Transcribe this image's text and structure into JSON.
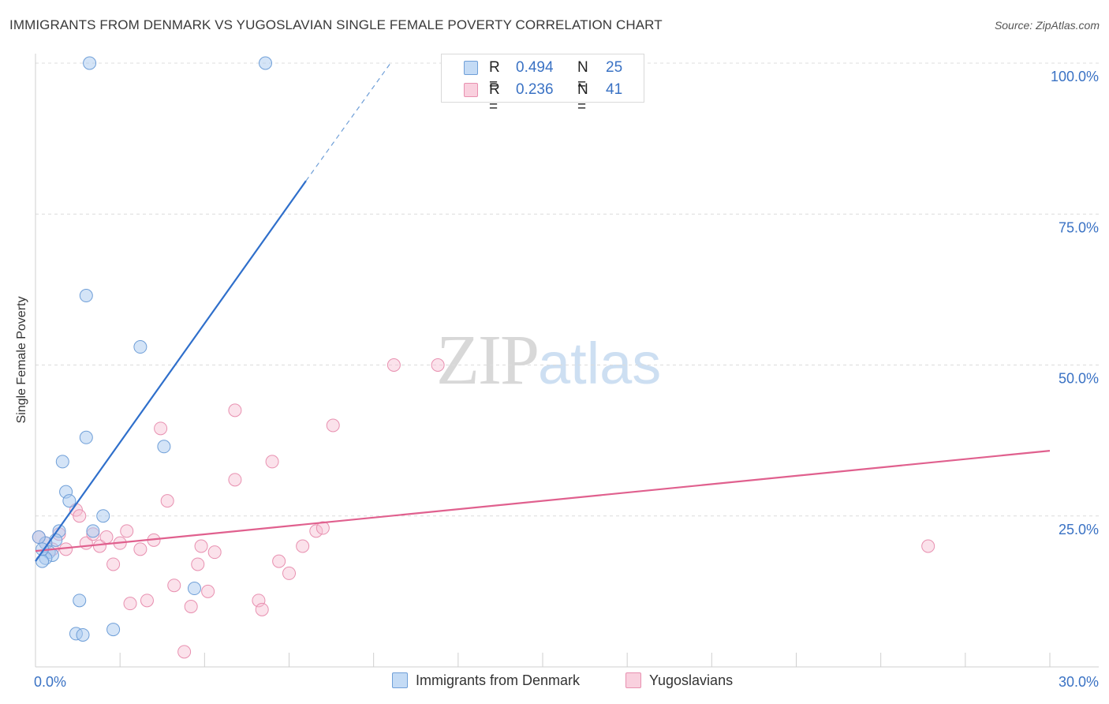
{
  "header": {
    "title": "IMMIGRANTS FROM DENMARK VS YUGOSLAVIAN SINGLE FEMALE POVERTY CORRELATION CHART",
    "source": "Source: ZipAtlas.com"
  },
  "watermark": {
    "zip": "ZIP",
    "atlas": "atlas"
  },
  "legend": {
    "r_label": "R =",
    "n_label": "N =",
    "series": [
      {
        "r": "0.494",
        "n": "25"
      },
      {
        "r": "0.236",
        "n": "41"
      }
    ]
  },
  "bottom_legend": [
    "Immigrants from Denmark",
    "Yugoslavians"
  ],
  "colors": {
    "blue_fill": "#a9c9f0",
    "blue_stroke": "#6f9fd8",
    "blue_line": "#2f6fcb",
    "pink_fill": "#f6bfd3",
    "pink_stroke": "#e890b0",
    "pink_line": "#e0608e",
    "tick_text": "#3a72c4"
  },
  "chart_data": {
    "type": "scatter",
    "title": "IMMIGRANTS FROM DENMARK VS YUGOSLAVIAN SINGLE FEMALE POVERTY CORRELATION CHART",
    "xlabel": "",
    "ylabel": "Single Female Poverty",
    "xlim": [
      0,
      30
    ],
    "ylim": [
      0,
      100
    ],
    "x_tick_labels": [
      "0.0%",
      "30.0%"
    ],
    "y_ticks": [
      25,
      50,
      75,
      100
    ],
    "y_tick_labels": [
      "25.0%",
      "50.0%",
      "75.0%",
      "100.0%"
    ],
    "grid": true,
    "series": [
      {
        "name": "Immigrants from Denmark",
        "r": 0.494,
        "n": 25,
        "points": [
          [
            1.6,
            100
          ],
          [
            6.8,
            100
          ],
          [
            1.5,
            61.5
          ],
          [
            3.1,
            53
          ],
          [
            1.5,
            38
          ],
          [
            3.8,
            36.5
          ],
          [
            0.8,
            34
          ],
          [
            0.9,
            29
          ],
          [
            1.0,
            27.5
          ],
          [
            2.0,
            25
          ],
          [
            0.7,
            22.5
          ],
          [
            1.7,
            22.5
          ],
          [
            0.6,
            21
          ],
          [
            0.3,
            20.5
          ],
          [
            0.4,
            19
          ],
          [
            0.5,
            18.5
          ],
          [
            0.3,
            18
          ],
          [
            0.2,
            17.5
          ],
          [
            0.1,
            21.5
          ],
          [
            1.3,
            11
          ],
          [
            4.7,
            13
          ],
          [
            1.2,
            5.5
          ],
          [
            1.4,
            5.3
          ],
          [
            2.3,
            6.2
          ],
          [
            0.2,
            19.5
          ]
        ],
        "trend": {
          "x": [
            0,
            8
          ],
          "y": [
            17.5,
            80.5
          ]
        },
        "trend_dashed": {
          "x": [
            8,
            10.5
          ],
          "y": [
            80.5,
            100
          ]
        }
      },
      {
        "name": "Yugoslavians",
        "r": 0.236,
        "n": 41,
        "points": [
          [
            0.1,
            21.5
          ],
          [
            0.3,
            20.5
          ],
          [
            0.5,
            19.5
          ],
          [
            0.7,
            22
          ],
          [
            0.9,
            19.5
          ],
          [
            1.2,
            26
          ],
          [
            1.3,
            25
          ],
          [
            1.5,
            20.5
          ],
          [
            1.7,
            22
          ],
          [
            1.9,
            20
          ],
          [
            2.1,
            21.5
          ],
          [
            2.3,
            17
          ],
          [
            2.5,
            20.5
          ],
          [
            2.7,
            22.5
          ],
          [
            2.8,
            10.5
          ],
          [
            3.1,
            19.5
          ],
          [
            3.3,
            11
          ],
          [
            3.5,
            21
          ],
          [
            3.7,
            39.5
          ],
          [
            3.9,
            27.5
          ],
          [
            4.1,
            13.5
          ],
          [
            4.4,
            2.5
          ],
          [
            4.6,
            10
          ],
          [
            4.8,
            17
          ],
          [
            4.9,
            20
          ],
          [
            5.1,
            12.5
          ],
          [
            5.3,
            19
          ],
          [
            5.9,
            42.5
          ],
          [
            5.9,
            31
          ],
          [
            6.6,
            11
          ],
          [
            6.7,
            9.5
          ],
          [
            7.0,
            34
          ],
          [
            7.2,
            17.5
          ],
          [
            7.5,
            15.5
          ],
          [
            7.9,
            20
          ],
          [
            8.3,
            22.5
          ],
          [
            8.5,
            23
          ],
          [
            8.8,
            40
          ],
          [
            10.6,
            50
          ],
          [
            11.9,
            50
          ],
          [
            26.4,
            20
          ]
        ],
        "trend": {
          "x": [
            0,
            30
          ],
          "y": [
            19.2,
            35.8
          ]
        }
      }
    ]
  }
}
